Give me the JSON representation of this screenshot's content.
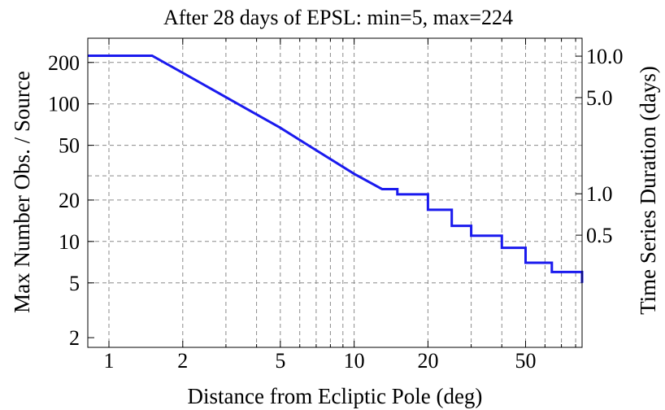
{
  "chart_data": {
    "type": "line",
    "title": "After 28 days of EPSL: min=5, max=224",
    "xlabel": "Distance from Ecliptic Pole (deg)",
    "ylabel": "Max Number Obs. / Source",
    "y2label": "Time Series Duration (days)",
    "xscale": "log",
    "yscale": "log",
    "xlim": [
      0.82,
      85
    ],
    "ylim": [
      1.7,
      300
    ],
    "y2lim": [
      0.0765,
      13.5
    ],
    "grid": true,
    "x_ticks": [
      1,
      2,
      5,
      10,
      20,
      50
    ],
    "x_tick_labels": [
      "1",
      "2",
      "5",
      "10",
      "20",
      "50"
    ],
    "x_grid": [
      1,
      2,
      3,
      4,
      5,
      6,
      7,
      8,
      9,
      10,
      20,
      30,
      40,
      50,
      60,
      70,
      80
    ],
    "x_minor_ticks": [
      3,
      4,
      6,
      7,
      8,
      9,
      30,
      40,
      60,
      70,
      80
    ],
    "y_ticks": [
      2,
      5,
      10,
      20,
      50,
      100,
      200
    ],
    "y_tick_labels": [
      "2",
      "5",
      "10",
      "20",
      "50",
      "100",
      "200"
    ],
    "y_grid": [
      5,
      10,
      20,
      30,
      50,
      100,
      200
    ],
    "y2_ticks": [
      0.5,
      1.0,
      5.0,
      10.0
    ],
    "y2_tick_labels": [
      "0.5",
      "1.0",
      "5.0",
      "10.0"
    ],
    "series": [
      {
        "color": "#1a1aee",
        "points": [
          [
            0.82,
            224
          ],
          [
            1.5,
            224
          ],
          [
            2,
            168
          ],
          [
            5,
            67
          ],
          [
            6.5,
            50
          ],
          [
            10,
            31
          ],
          [
            13,
            24
          ],
          [
            15,
            22
          ],
          [
            20,
            17
          ],
          [
            25,
            13
          ],
          [
            30,
            11
          ],
          [
            40,
            9
          ],
          [
            50,
            7
          ],
          [
            64,
            6
          ],
          [
            85,
            5
          ]
        ]
      }
    ]
  }
}
